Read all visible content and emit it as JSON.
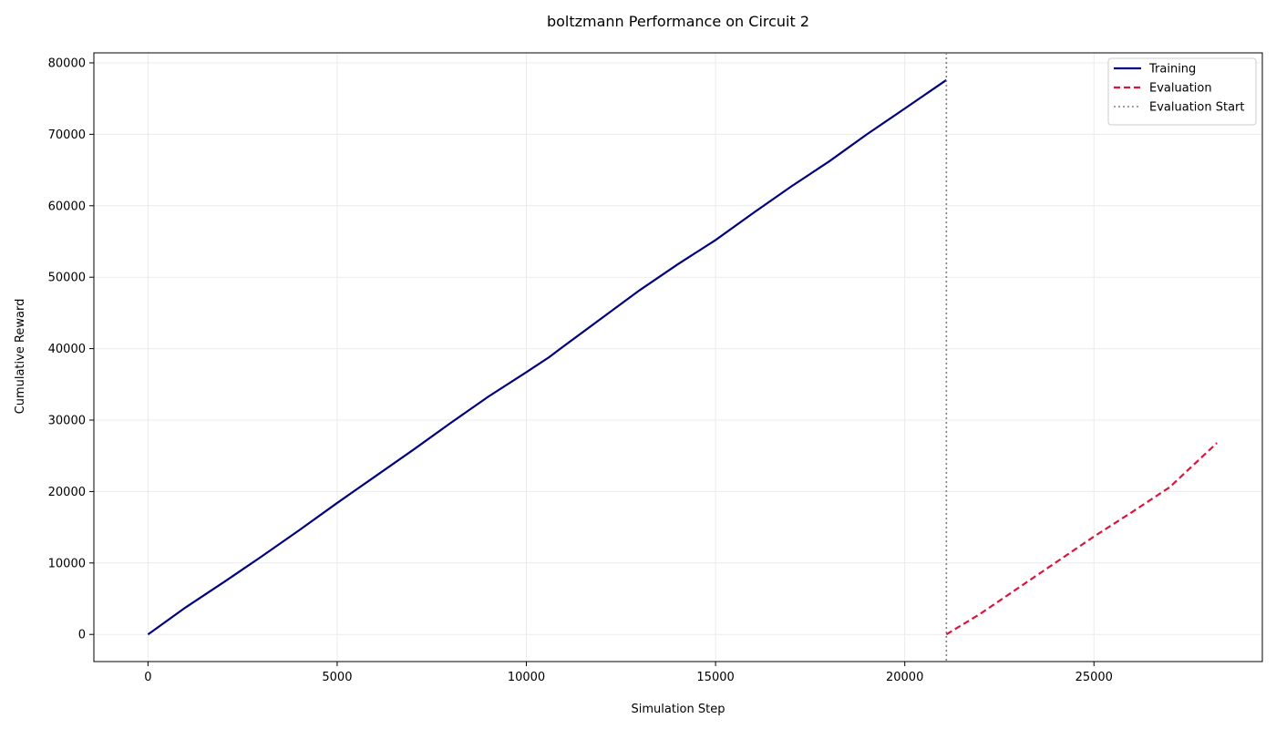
{
  "chart_data": {
    "type": "line",
    "title": "boltzmann Performance on Circuit 2",
    "xlabel": "Simulation Step",
    "ylabel": "Cumulative Reward",
    "xlim": [
      -1430,
      29450
    ],
    "ylim": [
      -3800,
      81400
    ],
    "xticks": [
      0,
      5000,
      10000,
      15000,
      20000,
      25000
    ],
    "yticks": [
      0,
      10000,
      20000,
      30000,
      40000,
      50000,
      60000,
      70000,
      80000
    ],
    "grid": true,
    "legend_position": "top-right",
    "series": [
      {
        "name": "Training",
        "color": "#000080",
        "style": "solid",
        "points": [
          [
            0,
            0
          ],
          [
            1000,
            3800
          ],
          [
            2000,
            7300
          ],
          [
            3000,
            10900
          ],
          [
            4000,
            14600
          ],
          [
            5000,
            18400
          ],
          [
            6000,
            22100
          ],
          [
            7000,
            25800
          ],
          [
            8000,
            29600
          ],
          [
            9000,
            33300
          ],
          [
            10000,
            36700
          ],
          [
            10600,
            38800
          ],
          [
            11000,
            40400
          ],
          [
            12000,
            44300
          ],
          [
            13000,
            48200
          ],
          [
            14000,
            51800
          ],
          [
            15000,
            55200
          ],
          [
            16000,
            59000
          ],
          [
            17000,
            62700
          ],
          [
            18000,
            66200
          ],
          [
            19000,
            70000
          ],
          [
            20000,
            73600
          ],
          [
            21100,
            77600
          ]
        ]
      },
      {
        "name": "Evaluation",
        "color": "#dc143c",
        "style": "dashed",
        "points": [
          [
            21100,
            0
          ],
          [
            22000,
            2900
          ],
          [
            23000,
            6500
          ],
          [
            24000,
            10100
          ],
          [
            25000,
            13700
          ],
          [
            26000,
            17100
          ],
          [
            27000,
            20600
          ],
          [
            28250,
            26800
          ]
        ]
      }
    ],
    "markers": [
      {
        "name": "Evaluation Start",
        "type": "vline",
        "x": 21100,
        "color": "#808080",
        "style": "dotted"
      }
    ]
  }
}
